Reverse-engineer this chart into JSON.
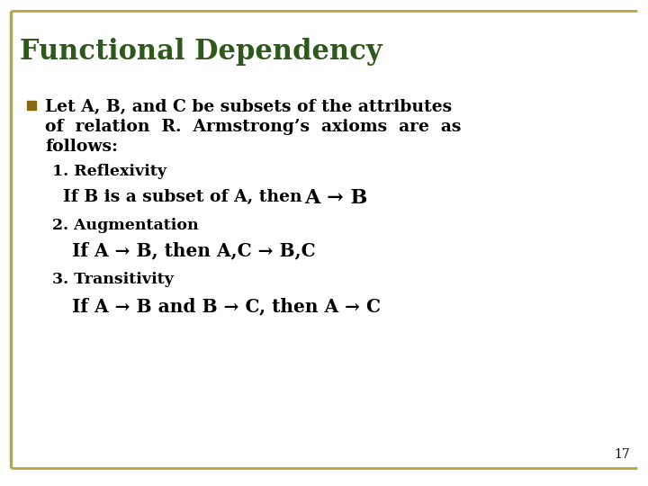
{
  "title": "Functional Dependency",
  "title_color": "#2d5a1b",
  "title_fontsize": 22,
  "background_color": "#ffffff",
  "border_color": "#b5a642",
  "slide_number": "17",
  "bullet_color": "#8B6914",
  "text_color": "#000000",
  "bullet_lines": [
    "Let A, B, and C be subsets of the attributes",
    "of  relation  R.  Armstrong’s  axioms  are  as",
    "follows:"
  ],
  "ref_label": "1. Reflexivity",
  "ref_body1": "If B is a subset of A, then ",
  "ref_body2": "A → B",
  "aug_label": "2. Augmentation",
  "aug_body": "If A → B, then A,C → B,C",
  "trans_label": "3. Transitivity",
  "trans_body": "If A → B and B → C, then A → C"
}
